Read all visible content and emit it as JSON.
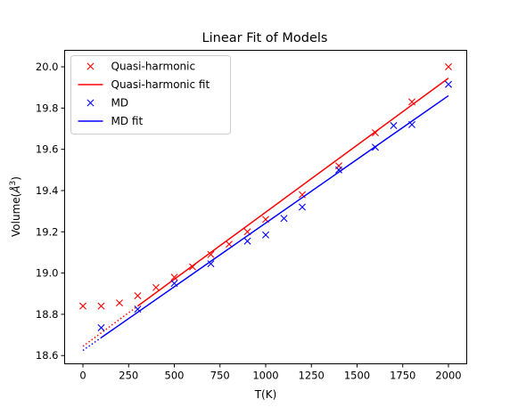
{
  "chart_data": {
    "type": "scatter",
    "title": "Linear Fit of Models",
    "xlabel": "T(K)",
    "ylabel_base": "Volume(",
    "ylabel_sym": "Å",
    "ylabel_exp": "3",
    "ylabel_close": ")",
    "xlim": [
      -100,
      2100
    ],
    "ylim": [
      18.56,
      20.08
    ],
    "xticks": [
      0,
      250,
      500,
      750,
      1000,
      1250,
      1500,
      1750,
      2000
    ],
    "yticks": [
      18.6,
      18.8,
      19.0,
      19.2,
      19.4,
      19.6,
      19.8,
      20.0
    ],
    "grid": false,
    "legend_position": "upper left",
    "series": [
      {
        "name": "Quasi-harmonic",
        "kind": "scatter",
        "marker": "x",
        "color": "#ff0000",
        "x": [
          0,
          100,
          200,
          300,
          400,
          500,
          600,
          700,
          800,
          900,
          1000,
          1200,
          1400,
          1600,
          1800,
          2000
        ],
        "y": [
          18.84,
          18.84,
          18.855,
          18.89,
          18.93,
          18.98,
          19.03,
          19.09,
          19.14,
          19.2,
          19.26,
          19.38,
          19.52,
          19.68,
          19.83,
          20.0
        ]
      },
      {
        "name": "Quasi-harmonic fit",
        "kind": "line",
        "color": "#ff0000",
        "x": [
          0,
          300,
          2000
        ],
        "y": [
          18.645,
          18.83,
          19.945
        ],
        "dotted_until_x": 300
      },
      {
        "name": "MD",
        "kind": "scatter",
        "marker": "x",
        "color": "#0000ff",
        "x": [
          100,
          300,
          500,
          700,
          900,
          1000,
          1100,
          1200,
          1400,
          1600,
          1700,
          1800,
          2000
        ],
        "y": [
          18.735,
          18.825,
          18.95,
          19.045,
          19.155,
          19.185,
          19.265,
          19.32,
          19.5,
          19.61,
          19.715,
          19.72,
          19.915
        ]
      },
      {
        "name": "MD fit",
        "kind": "line",
        "color": "#0000ff",
        "x": [
          0,
          100,
          2000
        ],
        "y": [
          18.625,
          18.685,
          19.86
        ],
        "dotted_until_x": 100
      }
    ]
  }
}
